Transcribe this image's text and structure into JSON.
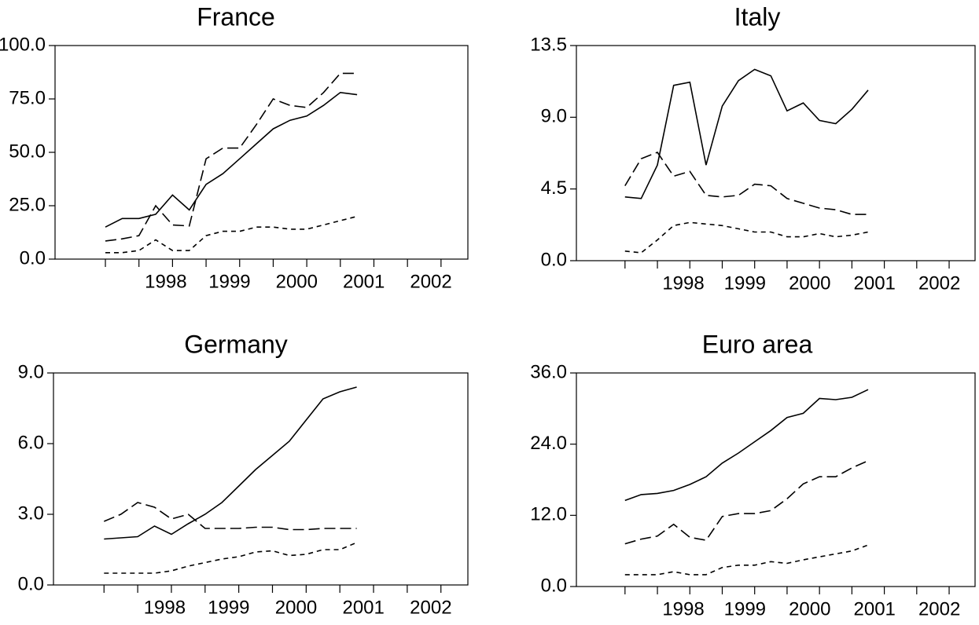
{
  "chart_data": [
    {
      "type": "line",
      "title": "France",
      "x": [
        1997.5,
        1997.75,
        1998,
        1998.25,
        1998.5,
        1998.75,
        1999,
        1999.25,
        1999.5,
        1999.75,
        2000,
        2000.25,
        2000.5,
        2000.75,
        2001,
        2001.25
      ],
      "xlim": [
        1996.75,
        2002.9
      ],
      "xticks": [
        {
          "value": 1998.4,
          "label": "1998"
        },
        {
          "value": 1999.35,
          "label": "1999"
        },
        {
          "value": 2000.35,
          "label": "2000"
        },
        {
          "value": 2001.35,
          "label": "2001"
        },
        {
          "value": 2002.35,
          "label": "2002"
        }
      ],
      "xminorticks": [
        1997.5,
        1998,
        1998.5,
        1999,
        1999.5,
        2000,
        2000.5,
        2001,
        2001.5,
        2002,
        2002.5
      ],
      "ylim": [
        0,
        100
      ],
      "yticks": [
        {
          "value": 0,
          "label": "0.0"
        },
        {
          "value": 25,
          "label": "25.0"
        },
        {
          "value": 50,
          "label": "50.0"
        },
        {
          "value": 75,
          "label": "75.0"
        },
        {
          "value": 100,
          "label": "100.0"
        }
      ],
      "series": [
        {
          "color": "#000000",
          "line_style": "solid",
          "values": [
            15,
            19,
            19,
            21,
            30,
            23,
            35,
            40,
            47,
            54,
            61,
            65,
            67,
            72,
            78,
            77
          ]
        },
        {
          "color": "#000000",
          "line_style": "long-dash",
          "values": [
            8.5,
            9.5,
            11,
            25,
            16,
            15.5,
            47,
            52,
            52,
            63,
            75,
            72,
            71,
            78,
            87,
            87
          ]
        },
        {
          "color": "#000000",
          "line_style": "short-dash",
          "values": [
            3,
            3,
            4,
            9,
            4,
            4,
            11,
            13,
            13,
            15,
            15,
            14,
            14,
            16,
            18,
            20
          ]
        }
      ]
    },
    {
      "type": "line",
      "title": "Italy",
      "x": [
        1997.5,
        1997.75,
        1998,
        1998.25,
        1998.5,
        1998.75,
        1999,
        1999.25,
        1999.5,
        1999.75,
        2000,
        2000.25,
        2000.5,
        2000.75,
        2001,
        2001.25
      ],
      "xlim": [
        1996.75,
        2002.9
      ],
      "xticks": [
        {
          "value": 1998.4,
          "label": "1998"
        },
        {
          "value": 1999.35,
          "label": "1999"
        },
        {
          "value": 2000.35,
          "label": "2000"
        },
        {
          "value": 2001.35,
          "label": "2001"
        },
        {
          "value": 2002.35,
          "label": "2002"
        }
      ],
      "xminorticks": [
        1997.5,
        1998,
        1998.5,
        1999,
        1999.5,
        2000,
        2000.5,
        2001,
        2001.5,
        2002,
        2002.5
      ],
      "ylim": [
        0,
        13.5
      ],
      "yticks": [
        {
          "value": 0,
          "label": "0.0"
        },
        {
          "value": 4.5,
          "label": "4.5"
        },
        {
          "value": 9,
          "label": "9.0"
        },
        {
          "value": 13.5,
          "label": "13.5"
        }
      ],
      "series": [
        {
          "color": "#000000",
          "line_style": "solid",
          "values": [
            4.0,
            3.9,
            6.0,
            11.0,
            11.2,
            6.0,
            9.7,
            11.3,
            12.0,
            11.6,
            9.4,
            9.9,
            8.8,
            8.6,
            9.5,
            10.7
          ]
        },
        {
          "color": "#000000",
          "line_style": "long-dash",
          "values": [
            4.7,
            6.4,
            6.8,
            5.3,
            5.6,
            4.1,
            4.0,
            4.1,
            4.8,
            4.7,
            3.9,
            3.6,
            3.3,
            3.2,
            2.9,
            2.9
          ]
        },
        {
          "color": "#000000",
          "line_style": "short-dash",
          "values": [
            0.6,
            0.5,
            1.3,
            2.2,
            2.4,
            2.3,
            2.2,
            2.0,
            1.8,
            1.8,
            1.5,
            1.5,
            1.7,
            1.5,
            1.6,
            1.8
          ]
        }
      ]
    },
    {
      "type": "line",
      "title": "Germany",
      "x": [
        1997.5,
        1997.75,
        1998,
        1998.25,
        1998.5,
        1998.75,
        1999,
        1999.25,
        1999.5,
        1999.75,
        2000,
        2000.25,
        2000.5,
        2000.75,
        2001,
        2001.25
      ],
      "xlim": [
        1996.75,
        2002.9
      ],
      "xticks": [
        {
          "value": 1998.4,
          "label": "1998"
        },
        {
          "value": 1999.35,
          "label": "1999"
        },
        {
          "value": 2000.35,
          "label": "2000"
        },
        {
          "value": 2001.35,
          "label": "2001"
        },
        {
          "value": 2002.35,
          "label": "2002"
        }
      ],
      "xminorticks": [
        1997.5,
        1998,
        1998.5,
        1999,
        1999.5,
        2000,
        2000.5,
        2001,
        2001.5,
        2002,
        2002.5
      ],
      "ylim": [
        0,
        9
      ],
      "yticks": [
        {
          "value": 0,
          "label": "0.0"
        },
        {
          "value": 3,
          "label": "3.0"
        },
        {
          "value": 6,
          "label": "6.0"
        },
        {
          "value": 9,
          "label": "9.0"
        }
      ],
      "series": [
        {
          "color": "#000000",
          "line_style": "solid",
          "values": [
            1.95,
            2.0,
            2.05,
            2.5,
            2.15,
            2.6,
            3.0,
            3.5,
            4.2,
            4.9,
            5.5,
            6.1,
            7.0,
            7.9,
            8.2,
            8.4
          ]
        },
        {
          "color": "#000000",
          "line_style": "long-dash",
          "values": [
            2.7,
            3.0,
            3.5,
            3.3,
            2.8,
            3.0,
            2.4,
            2.4,
            2.4,
            2.45,
            2.45,
            2.35,
            2.35,
            2.4,
            2.4,
            2.4
          ]
        },
        {
          "color": "#000000",
          "line_style": "short-dash",
          "values": [
            0.5,
            0.5,
            0.5,
            0.5,
            0.6,
            0.8,
            0.95,
            1.1,
            1.2,
            1.4,
            1.45,
            1.25,
            1.3,
            1.5,
            1.5,
            1.8
          ]
        }
      ]
    },
    {
      "type": "line",
      "title": "Euro area",
      "x": [
        1997.5,
        1997.75,
        1998,
        1998.25,
        1998.5,
        1998.75,
        1999,
        1999.25,
        1999.5,
        1999.75,
        2000,
        2000.25,
        2000.5,
        2000.75,
        2001,
        2001.25
      ],
      "xlim": [
        1996.75,
        2002.9
      ],
      "xticks": [
        {
          "value": 1998.4,
          "label": "1998"
        },
        {
          "value": 1999.35,
          "label": "1999"
        },
        {
          "value": 2000.35,
          "label": "2000"
        },
        {
          "value": 2001.35,
          "label": "2001"
        },
        {
          "value": 2002.35,
          "label": "2002"
        }
      ],
      "xminorticks": [
        1997.5,
        1998,
        1998.5,
        1999,
        1999.5,
        2000,
        2000.5,
        2001,
        2001.5,
        2002,
        2002.5
      ],
      "ylim": [
        0,
        36
      ],
      "yticks": [
        {
          "value": 0,
          "label": "0.0"
        },
        {
          "value": 12,
          "label": "12.0"
        },
        {
          "value": 24,
          "label": "24.0"
        },
        {
          "value": 36,
          "label": "36.0"
        }
      ],
      "series": [
        {
          "color": "#000000",
          "line_style": "solid",
          "values": [
            14.5,
            15.5,
            15.7,
            16.2,
            17.2,
            18.5,
            20.8,
            22.5,
            24.4,
            26.3,
            28.5,
            29.2,
            31.7,
            31.5,
            31.9,
            33.2
          ]
        },
        {
          "color": "#000000",
          "line_style": "long-dash",
          "values": [
            7.2,
            8.0,
            8.5,
            10.5,
            8.3,
            7.8,
            11.8,
            12.3,
            12.3,
            12.8,
            14.8,
            17.3,
            18.5,
            18.5,
            20.0,
            21.2
          ]
        },
        {
          "color": "#000000",
          "line_style": "short-dash",
          "values": [
            2.0,
            2.0,
            2.0,
            2.5,
            2.0,
            2.0,
            3.2,
            3.6,
            3.6,
            4.2,
            3.9,
            4.5,
            5.0,
            5.5,
            6.0,
            7.0
          ]
        }
      ]
    }
  ]
}
